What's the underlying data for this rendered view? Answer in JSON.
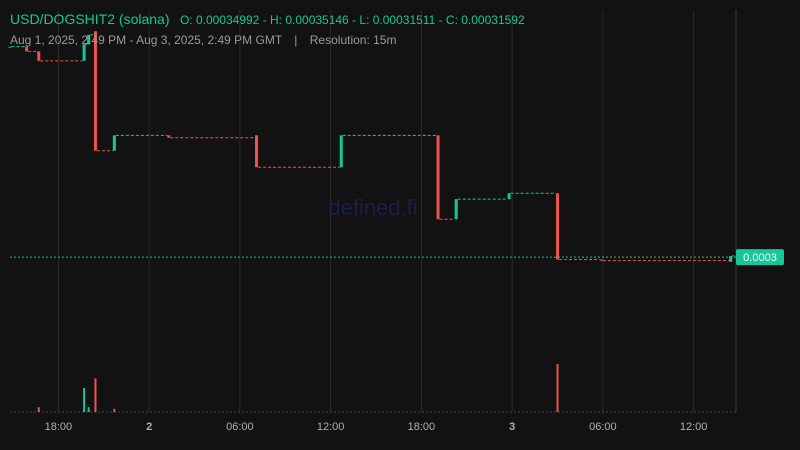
{
  "header": {
    "pair_title": "USD/DOGSHIT2 (solana)",
    "ohlc_text": "O: 0.00034992 - H: 0.00035146 - L: 0.00031511 - C: 0.00031592",
    "date_range": "Aug 1, 2025, 2:49 PM - Aug 3, 2025, 2:49 PM GMT",
    "separator": "|",
    "resolution": "Resolution: 15m"
  },
  "watermark": "defined.fi",
  "colors": {
    "background": "#121212",
    "up": "#16c79a",
    "down": "#ef5350",
    "grid": "#2a2a2a",
    "axis_text": "#b0b0b0",
    "price_badge": "#16c79a"
  },
  "chart_data": {
    "type": "candlestick",
    "x_ticks": [
      {
        "label": "18:00",
        "t": 3.2,
        "bold": false
      },
      {
        "label": "2",
        "t": 9.2,
        "bold": true
      },
      {
        "label": "06:00",
        "t": 15.2,
        "bold": false
      },
      {
        "label": "12:00",
        "t": 21.2,
        "bold": false
      },
      {
        "label": "18:00",
        "t": 27.2,
        "bold": false
      },
      {
        "label": "3",
        "t": 33.2,
        "bold": true
      },
      {
        "label": "06:00",
        "t": 39.2,
        "bold": false
      },
      {
        "label": "12:00",
        "t": 45.2,
        "bold": false
      }
    ],
    "t_range": [
      0,
      48
    ],
    "y_range": [
      0.00025,
      0.00042
    ],
    "current_price": 0.0003155,
    "current_price_label": "0.0003",
    "candles": [
      {
        "t": 0.0,
        "o": 0.0004045,
        "c": 0.0004045
      },
      {
        "t": 1.1,
        "o": 0.0004045,
        "c": 0.0004025
      },
      {
        "t": 1.9,
        "o": 0.0004025,
        "c": 0.0003985
      },
      {
        "t": 4.9,
        "o": 0.0003985,
        "c": 0.0004055
      },
      {
        "t": 5.2,
        "o": 0.0004055,
        "c": 0.0004095
      },
      {
        "t": 5.65,
        "o": 0.000411,
        "c": 0.0003605
      },
      {
        "t": 6.9,
        "o": 0.0003605,
        "c": 0.000367
      },
      {
        "t": 10.5,
        "o": 0.000367,
        "c": 0.000366
      },
      {
        "t": 16.3,
        "o": 0.000367,
        "c": 0.0003535
      },
      {
        "t": 21.9,
        "o": 0.0003535,
        "c": 0.000367
      },
      {
        "t": 28.3,
        "o": 0.000367,
        "c": 0.0003315
      },
      {
        "t": 29.5,
        "o": 0.0003315,
        "c": 0.00034
      },
      {
        "t": 33.0,
        "o": 0.00034,
        "c": 0.0003425
      },
      {
        "t": 36.2,
        "o": 0.0003425,
        "c": 0.0003145
      },
      {
        "t": 39.1,
        "o": 0.0003145,
        "c": 0.000314
      },
      {
        "t": 47.65,
        "o": 0.0003135,
        "c": 0.000316
      }
    ],
    "volume": [
      {
        "t": 1.9,
        "v": 0.06,
        "dir": "down"
      },
      {
        "t": 4.9,
        "v": 0.3,
        "dir": "up"
      },
      {
        "t": 5.2,
        "v": 0.06,
        "dir": "up"
      },
      {
        "t": 5.65,
        "v": 0.42,
        "dir": "down"
      },
      {
        "t": 6.9,
        "v": 0.04,
        "dir": "down"
      },
      {
        "t": 36.2,
        "v": 0.6,
        "dir": "down"
      }
    ]
  }
}
